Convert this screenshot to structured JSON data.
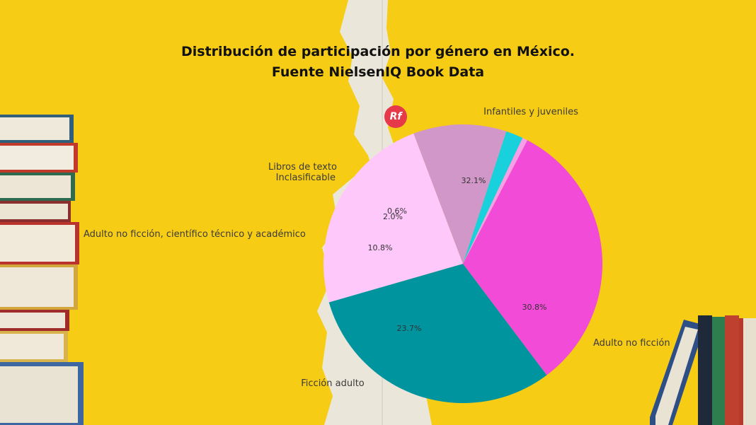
{
  "title_line1": "Distribución de participación por género en México.",
  "title_line2": "Fuente NielsenIQ Book Data",
  "logo_text": "Rf",
  "chart_data": {
    "type": "pie",
    "title": "Distribución de participación por género en México. Fuente NielsenIQ Book Data",
    "slices": [
      {
        "label": "Infantiles y juveniles",
        "value": 32.1,
        "value_label": "32.1%",
        "color": "#f24bd8"
      },
      {
        "label": "Adulto no ficción",
        "value": 30.8,
        "value_label": "30.8%",
        "color": "#00949f"
      },
      {
        "label": "Ficción adulto",
        "value": 23.7,
        "value_label": "23.7%",
        "color": "#ffc8fb"
      },
      {
        "label": "Adulto no ficción, científico técnico y académico",
        "value": 10.8,
        "value_label": "10.8%",
        "color": "#d197c8"
      },
      {
        "label": "Libros de texto",
        "value": 2.0,
        "value_label": "2.0%",
        "color": "#19d1dc"
      },
      {
        "label": "Inclasificable",
        "value": 0.6,
        "value_label": "0.6%",
        "color": "#f79ee8"
      }
    ]
  }
}
